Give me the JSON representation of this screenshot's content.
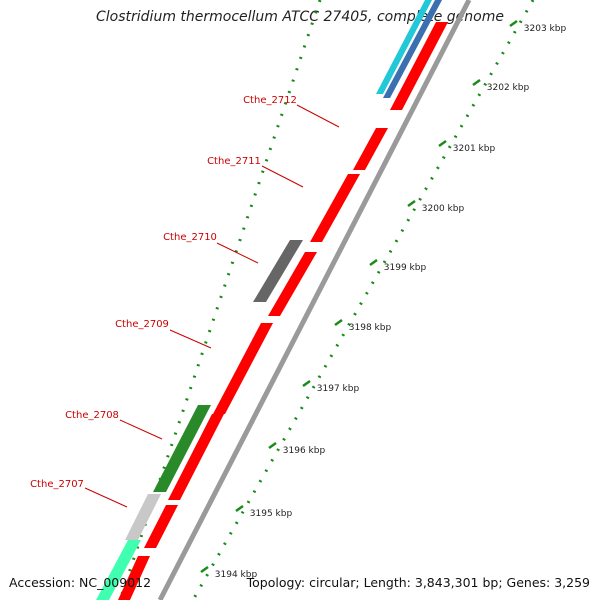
{
  "title": "Clostridium thermocellum ATCC 27405, complete genome",
  "footer": {
    "accession": "Accession: NC_009012",
    "topology": "Topology: circular; Length: 3,843,301 bp; Genes: 3,259"
  },
  "colors": {
    "forward_cds": "#ff0000",
    "backbone": "#9a9a9a",
    "tick": "#1a8a1a",
    "gene_label": "#cc0000",
    "reverse_gene_gray": "#606060",
    "reverse_gene_green": "#2a8a2a",
    "reverse_gene_light_gray": "#c8c8c8",
    "reverse_gene_aqua": "#40ffb0",
    "reverse_gene_cyan": "#20c8d8",
    "reverse_gene_blue": "#3a6fb0"
  },
  "scale_labels": [
    "3194 kbp",
    "3195 kbp",
    "3196 kbp",
    "3197 kbp",
    "3198 kbp",
    "3199 kbp",
    "3200 kbp",
    "3201 kbp",
    "3202 kbp",
    "3203 kbp"
  ],
  "gene_labels": [
    "Cthe_2707",
    "Cthe_2708",
    "Cthe_2709",
    "Cthe_2710",
    "Cthe_2711",
    "Cthe_2712"
  ]
}
